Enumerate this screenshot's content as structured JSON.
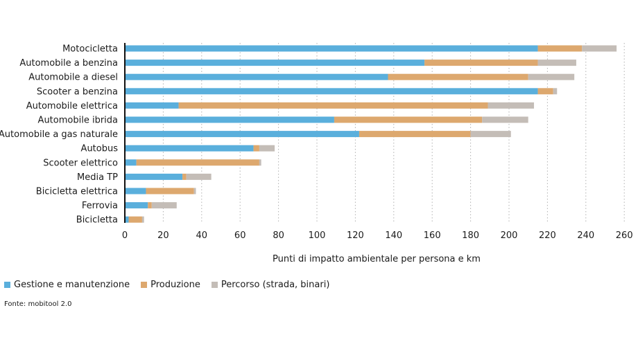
{
  "chart_data": {
    "type": "bar",
    "orientation": "horizontal",
    "stacked": true,
    "categories": [
      "Motocicletta",
      "Automobile a benzina",
      "Automobile a diesel",
      "Scooter a benzina",
      "Automobile elettrica",
      "Automobile ibrida",
      "Automobile a gas naturale",
      "Autobus",
      "Scooter elettrico",
      "Media TP",
      "Bicicletta elettrica",
      "Ferrovia",
      "Bicicletta"
    ],
    "series": [
      {
        "name": "Gestione e manutenzione",
        "color": "#5aafdc",
        "values": [
          215,
          156,
          137,
          215,
          28,
          109,
          122,
          67,
          6,
          30,
          11,
          12,
          2
        ]
      },
      {
        "name": "Produzione",
        "color": "#dda86e",
        "values": [
          23,
          59,
          73,
          8,
          161,
          77,
          58,
          3,
          64,
          2,
          25,
          2,
          7
        ]
      },
      {
        "name": "Percorso (strada, binari)",
        "color": "#c4bdb7",
        "values": [
          18,
          20,
          24,
          2,
          24,
          24,
          21,
          8,
          1,
          13,
          1,
          13,
          1
        ]
      }
    ],
    "xlabel": "Punti di impatto ambientale per persona e km",
    "xlim": [
      0,
      260
    ],
    "xticks": [
      0,
      20,
      40,
      60,
      80,
      100,
      120,
      140,
      160,
      180,
      200,
      220,
      240,
      260
    ],
    "grid": "vertical-dotted",
    "legend_position": "bottom-left"
  },
  "source": "Fonte: mobitool 2.0"
}
